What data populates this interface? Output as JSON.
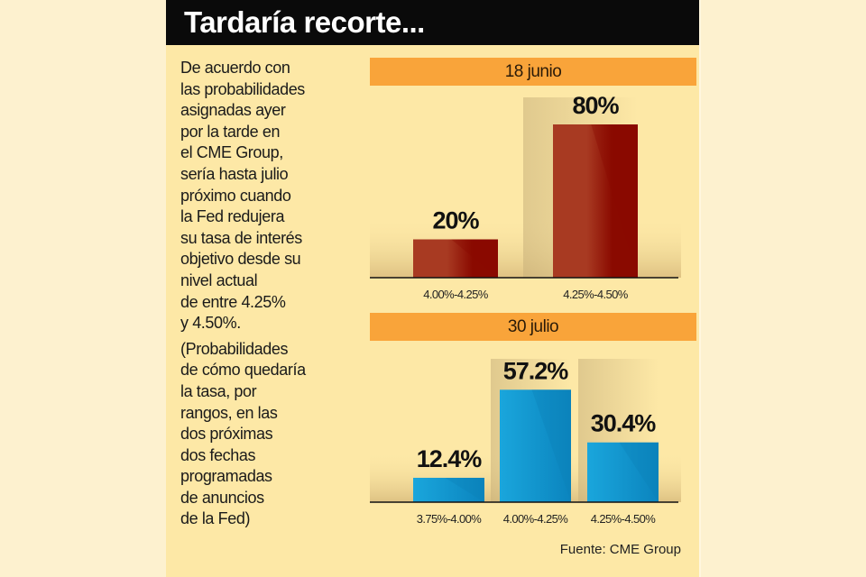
{
  "title": "Tardaría recorte...",
  "description_lines": [
    "De acuerdo con",
    "las probabilidades",
    "asignadas ayer",
    "por la tarde en",
    "el CME Group,",
    "sería hasta julio",
    "próximo cuando",
    "la Fed redujera",
    "su tasa de interés",
    "objetivo desde su",
    "nivel actual",
    "de entre 4.25%",
    "y 4.50%."
  ],
  "note_lines": [
    "(Probabilidades",
    "de cómo quedaría",
    "la tasa, por",
    "rangos, en las",
    "dos próximas",
    "dos fechas",
    "programadas",
    "de anuncios",
    "de la Fed)"
  ],
  "source": "Fuente: CME Group",
  "colors": {
    "header": "#f9a43a",
    "bar1": "#a83a22",
    "bar1_dark": "#8a0a00",
    "bar2": "#18a0d8",
    "bar2_dark": "#0b86c0",
    "title_bg": "#0a0a0a"
  },
  "chart_data": [
    {
      "type": "bar",
      "title": "18 junio",
      "categories": [
        "4.00%-4.25%",
        "4.25%-4.50%"
      ],
      "values": [
        20,
        80
      ],
      "labels": [
        "20%",
        "80%"
      ],
      "ylim": [
        0,
        100
      ]
    },
    {
      "type": "bar",
      "title": "30 julio",
      "categories": [
        "3.75%-4.00%",
        "4.00%-4.25%",
        "4.25%-4.50%"
      ],
      "values": [
        12.4,
        57.2,
        30.4
      ],
      "labels": [
        "12.4%",
        "57.2%",
        "30.4%"
      ],
      "ylim": [
        0,
        100
      ]
    }
  ]
}
